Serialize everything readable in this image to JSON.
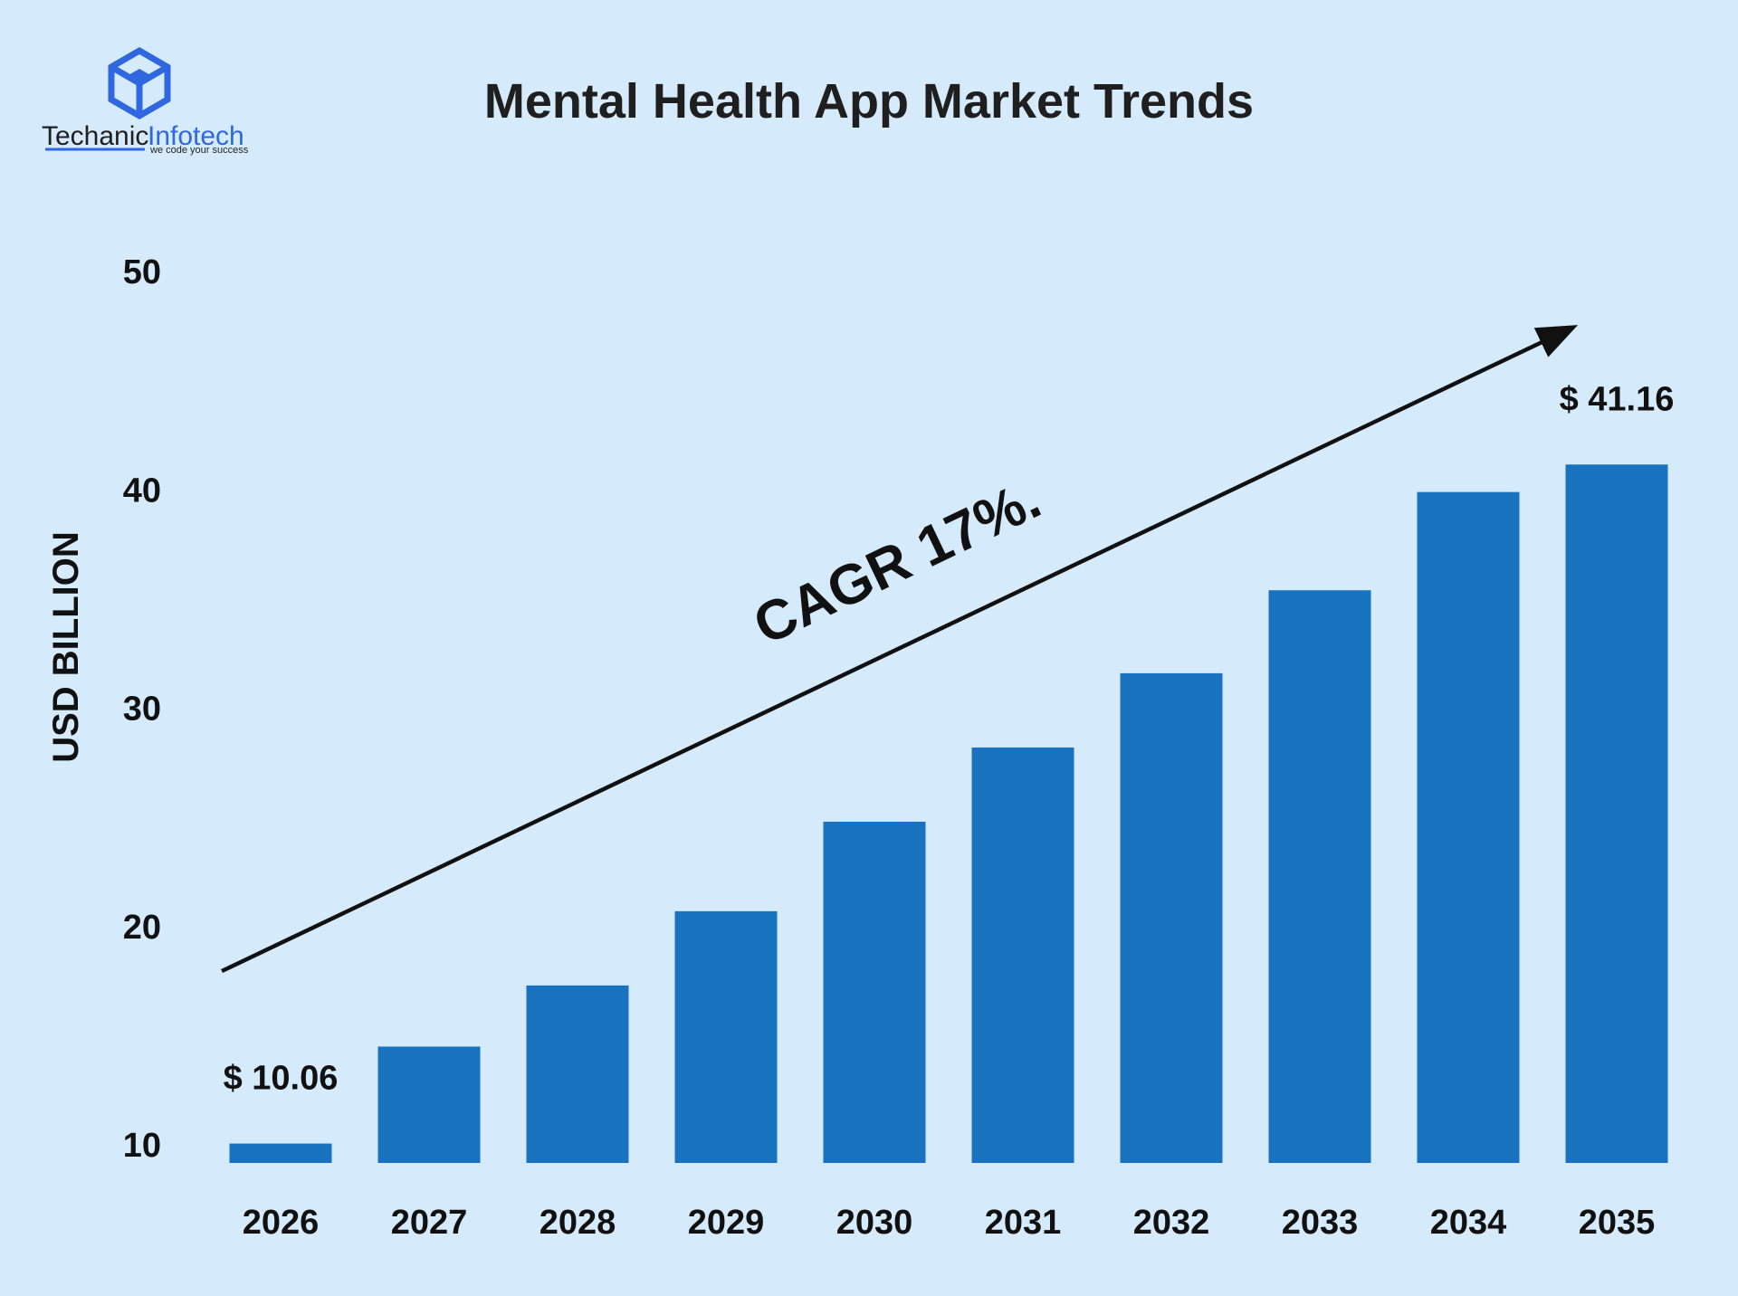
{
  "brand": {
    "name_part1": "Techanic",
    "name_part2": "Infotech",
    "tagline": "we code your success",
    "logo_icon": "hexagon-cube-logo-icon",
    "color": "#2f67e0"
  },
  "chart_data": {
    "type": "bar",
    "title": "Mental Health App Market Trends",
    "xlabel": "",
    "ylabel": "USD BILLION",
    "categories": [
      "2026",
      "2027",
      "2028",
      "2029",
      "2030",
      "2031",
      "2032",
      "2033",
      "2034",
      "2035"
    ],
    "values": [
      10.06,
      14.5,
      17.3,
      20.7,
      24.8,
      28.2,
      31.6,
      35.4,
      39.9,
      41.16
    ],
    "yticks": [
      10,
      20,
      30,
      40,
      50
    ],
    "ylim": [
      8,
      50
    ],
    "data_labels": [
      {
        "category": "2026",
        "text": "$ 10.06"
      },
      {
        "category": "2035",
        "text": "$ 41.16"
      }
    ],
    "annotation": {
      "text": "CAGR 17%.",
      "type": "trend-arrow"
    },
    "bar_color": "#1872c0",
    "grid": false,
    "legend": "none"
  }
}
